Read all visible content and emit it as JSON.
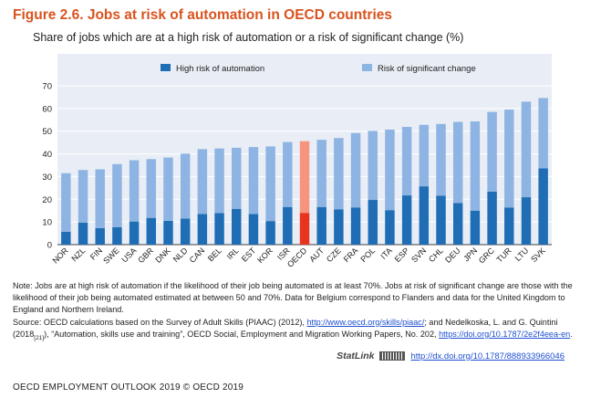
{
  "title": "Figure 2.6. Jobs at risk of automation in OECD countries",
  "subtitle": "Share of jobs which are at a high risk of automation or a risk of significant change (%)",
  "chart_data": {
    "type": "bar",
    "stacked": true,
    "categories": [
      "NOR",
      "NZL",
      "FIN",
      "SWE",
      "USA",
      "GBR",
      "DNK",
      "NLD",
      "CAN",
      "BEL",
      "IRL",
      "EST",
      "KOR",
      "ISR",
      "OECD",
      "AUT",
      "CZE",
      "FRA",
      "POL",
      "ITA",
      "ESP",
      "SVN",
      "CHL",
      "DEU",
      "JPN",
      "GRC",
      "TUR",
      "LTU",
      "SVK"
    ],
    "highlight_category": "OECD",
    "series": [
      {
        "name": "High risk of automation",
        "color": "#1f6db5",
        "highlight_color": "#e8341f",
        "values": [
          5.7,
          9.7,
          7.3,
          7.7,
          10.2,
          11.8,
          10.5,
          11.5,
          13.5,
          13.9,
          15.8,
          13.5,
          10.4,
          16.6,
          14.0,
          16.6,
          15.6,
          16.4,
          19.7,
          15.2,
          21.7,
          25.7,
          21.6,
          18.4,
          15.0,
          23.4,
          16.4,
          20.9,
          33.6
        ]
      },
      {
        "name": "Risk of significant change",
        "color": "#8db4e2",
        "highlight_color": "#f6947e",
        "values": [
          25.8,
          23.2,
          25.9,
          27.8,
          27.0,
          25.9,
          27.9,
          28.6,
          28.6,
          28.5,
          26.9,
          29.5,
          32.9,
          28.6,
          31.6,
          29.6,
          31.4,
          32.8,
          30.4,
          35.5,
          30.2,
          27.1,
          31.6,
          35.7,
          39.3,
          35.1,
          43.1,
          42.1,
          31.0
        ]
      }
    ],
    "ylim": [
      0,
      70
    ],
    "yticks": [
      0,
      10,
      20,
      30,
      40,
      50,
      60,
      70
    ],
    "grid": true,
    "legend": "top-inside"
  },
  "note": {
    "p1": "Note: Jobs are at high risk of automation if the likelihood of their job being automated is at least 70%. Jobs at risk of significant change are those with the likelihood of their job being automated estimated at between 50 and 70%. Data for Belgium correspond to Flanders and data for the United Kingdom to England and Northern Ireland.",
    "source_prefix": "Source: OECD calculations based on the Survey of Adult Skills (PIAAC) (2012), ",
    "source_link1": "http://www.oecd.org/skills/piaac/",
    "source_mid": "; and Nedelkoska, L. and G. Quintini (2018",
    "source_sub": "[21]",
    "source_mid2": "), “Automation, skills use and training”, OECD Social, Employment and Migration Working Papers, No. 202, ",
    "source_link2": "https://doi.org/10.1787/2e2f4eea-en",
    "source_end": "."
  },
  "statlink": {
    "logo": "StatLink",
    "url": "http://dx.doi.org/10.1787/888933966046"
  },
  "footer": "OECD EMPLOYMENT OUTLOOK 2019 © OECD 2019"
}
